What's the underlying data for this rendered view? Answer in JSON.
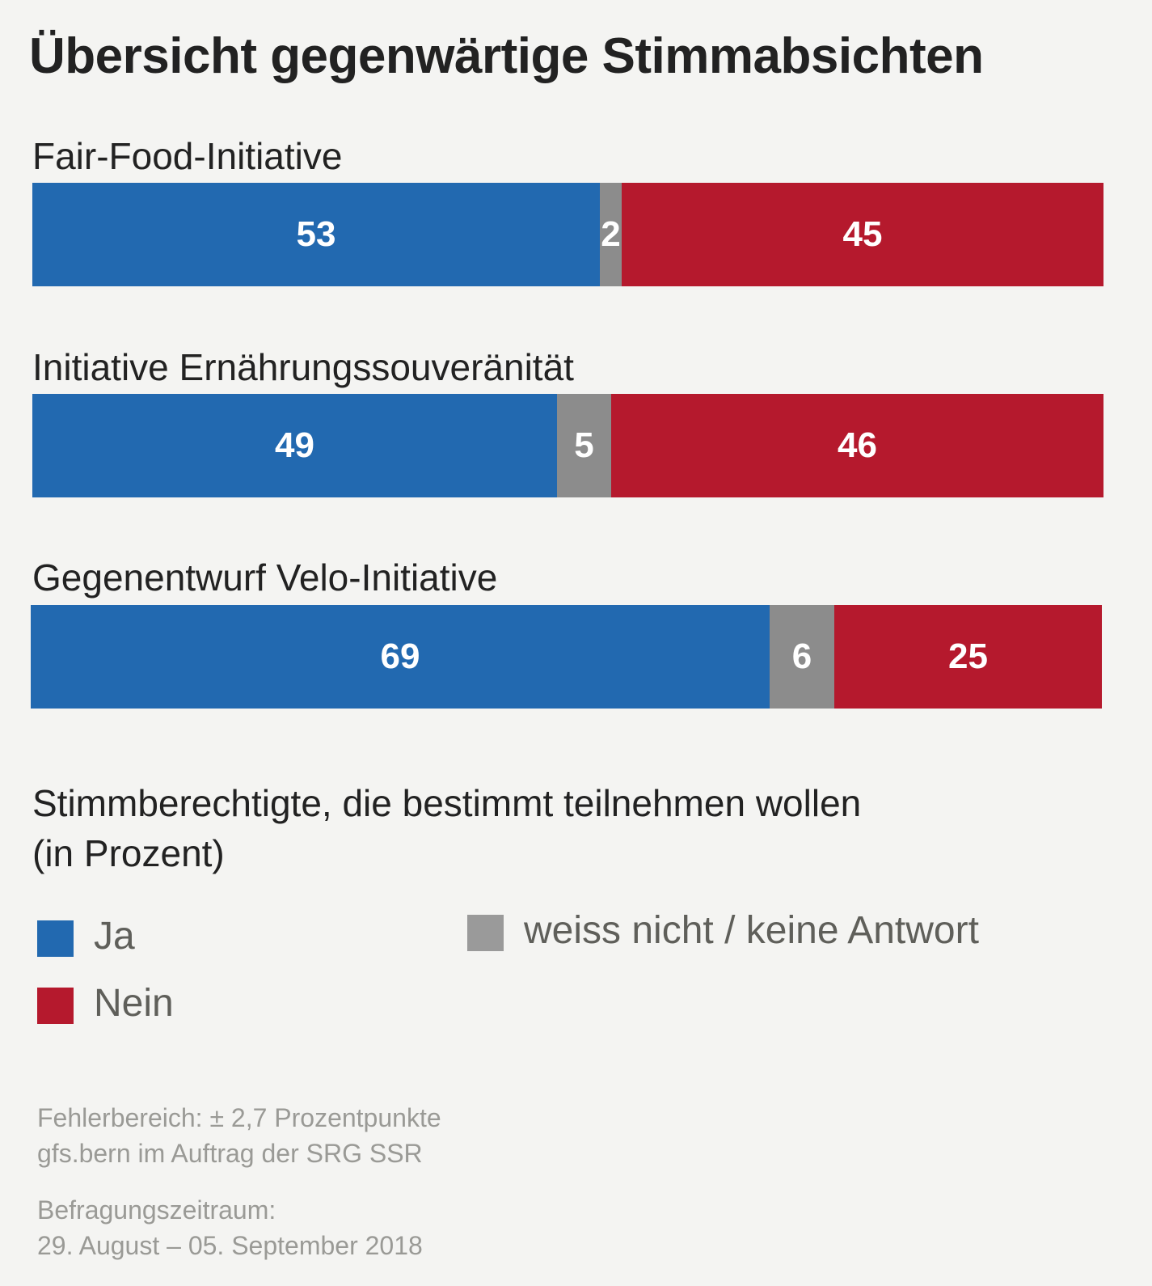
{
  "chart_data": {
    "type": "bar",
    "orientation": "horizontal",
    "stacked": true,
    "title": "Übersicht gegenwärtige Stimmabsichten",
    "subtitle": "Stimmberechtigte, die bestimmt teilnehmen wollen (in Prozent)",
    "categories": [
      "Fair-Food-Initiative",
      "Initiative Ernährungssouveränität",
      "Gegenentwurf Velo-Initiative"
    ],
    "series": [
      {
        "name": "Ja",
        "color": "#2269b0",
        "values": [
          53,
          49,
          69
        ]
      },
      {
        "name": "weiss nicht / keine Antwort",
        "color": "#8c8c8c",
        "values": [
          2,
          5,
          6
        ]
      },
      {
        "name": "Nein",
        "color": "#b5192d",
        "values": [
          45,
          46,
          25
        ]
      }
    ],
    "xlim": [
      0,
      100
    ],
    "legend": [
      {
        "label": "Ja",
        "color": "#2269b0"
      },
      {
        "label": "Nein",
        "color": "#b5192d"
      },
      {
        "label": "weiss nicht / keine Antwort",
        "color": "#9a9a9a"
      }
    ],
    "footnotes": [
      "Fehlerbereich: ± 2,7 Prozentpunkte",
      "gfs.bern im Auftrag der SRG SSR",
      "Befragungszeitraum:",
      "29. August – 05. September 2018"
    ]
  }
}
